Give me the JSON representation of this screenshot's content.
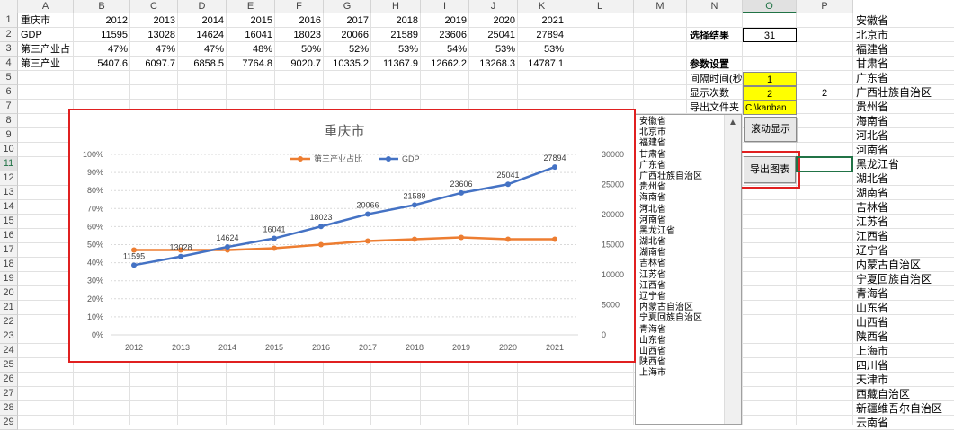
{
  "columns": [
    "A",
    "B",
    "C",
    "D",
    "E",
    "F",
    "G",
    "H",
    "I",
    "J",
    "K",
    "L",
    "M",
    "N",
    "O",
    "P"
  ],
  "selected_column": "O",
  "selected_row": 11,
  "rows": {
    "r1": {
      "label": "重庆市",
      "values": [
        "2012",
        "2013",
        "2014",
        "2015",
        "2016",
        "2017",
        "2018",
        "2019",
        "2020",
        "2021"
      ]
    },
    "r2": {
      "label": "GDP",
      "values": [
        "11595",
        "13028",
        "14624",
        "16041",
        "18023",
        "20066",
        "21589",
        "23606",
        "25041",
        "27894"
      ]
    },
    "r3": {
      "label": "第三产业占",
      "values": [
        "47%",
        "47%",
        "47%",
        "48%",
        "50%",
        "52%",
        "53%",
        "54%",
        "53%",
        "53%"
      ]
    },
    "r4": {
      "label": "第三产业",
      "values": [
        "5407.6",
        "6097.7",
        "6858.5",
        "7764.8",
        "9020.7",
        "10335.2",
        "11367.9",
        "12662.2",
        "13268.3",
        "14787.1"
      ]
    }
  },
  "settings": {
    "select_result_label": "选择结果",
    "select_result_value": "31",
    "params_label": "参数设置",
    "interval_label": "间隔时间(秒)",
    "interval_value": "1",
    "display_count_label": "显示次数",
    "display_count_value": "2",
    "o6_value": "2",
    "export_folder_label": "导出文件夹",
    "export_folder_value": "C:\\kanban"
  },
  "buttons": {
    "scroll_display": "滚动显示",
    "export_chart": "导出图表"
  },
  "provinces": [
    "安徽省",
    "北京市",
    "福建省",
    "甘肃省",
    "广东省",
    "广西壮族自治区",
    "贵州省",
    "海南省",
    "河北省",
    "河南省",
    "黑龙江省",
    "湖北省",
    "湖南省",
    "吉林省",
    "江苏省",
    "江西省",
    "辽宁省",
    "内蒙古自治区",
    "宁夏回族自治区",
    "青海省",
    "山东省",
    "山西省",
    "陕西省",
    "上海市",
    "四川省",
    "天津市",
    "西藏自治区",
    "新疆维吾尔自治区",
    "云南省"
  ],
  "listbox_items": [
    "安徽省",
    "北京市",
    "福建省",
    "甘肃省",
    "广东省",
    "广西壮族自治区",
    "贵州省",
    "海南省",
    "河北省",
    "河南省",
    "黑龙江省",
    "湖北省",
    "湖南省",
    "吉林省",
    "江苏省",
    "江西省",
    "辽宁省",
    "内蒙古自治区",
    "宁夏回族自治区",
    "青海省",
    "山东省",
    "山西省",
    "陕西省",
    "上海市"
  ],
  "chart_data": {
    "type": "line",
    "title": "重庆市",
    "categories": [
      "2012",
      "2013",
      "2014",
      "2015",
      "2016",
      "2017",
      "2018",
      "2019",
      "2020",
      "2021"
    ],
    "series": [
      {
        "name": "第三产业占比",
        "axis": "left",
        "color": "#ed7d31",
        "values": [
          0.47,
          0.47,
          0.47,
          0.48,
          0.5,
          0.52,
          0.53,
          0.54,
          0.53,
          0.53
        ]
      },
      {
        "name": "GDP",
        "axis": "right",
        "color": "#4472c4",
        "values": [
          11595,
          13028,
          14624,
          16041,
          18023,
          20066,
          21589,
          23606,
          25041,
          27894
        ],
        "labels": [
          "11595",
          "13028",
          "14624",
          "16041",
          "18023",
          "20066",
          "21589",
          "23606",
          "25041",
          "27894"
        ]
      }
    ],
    "y_left_ticks": [
      "0%",
      "10%",
      "20%",
      "30%",
      "40%",
      "50%",
      "60%",
      "70%",
      "80%",
      "90%",
      "100%"
    ],
    "y_right_ticks": [
      "0",
      "5000",
      "10000",
      "15000",
      "20000",
      "25000",
      "30000"
    ],
    "ylim_left": [
      0,
      1
    ],
    "ylim_right": [
      0,
      30000
    ],
    "legend_position": "top",
    "grid": true
  }
}
